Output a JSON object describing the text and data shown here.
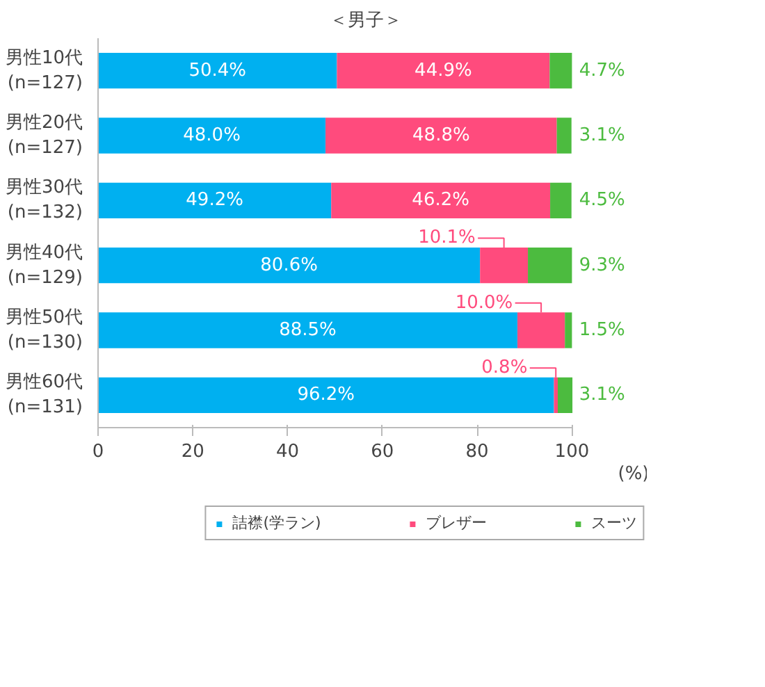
{
  "chart_data": {
    "type": "bar",
    "orientation": "horizontal",
    "stacked": true,
    "title": "＜男子＞",
    "xlabel": "(%)",
    "categories": [
      "男性10代\n(n=127)",
      "男性20代\n(n=127)",
      "男性30代\n(n=132)",
      "男性40代\n(n=129)",
      "男性50代\n(n=130)",
      "男性60代\n(n=131)"
    ],
    "series": [
      {
        "name": "詰襟(学ラン)",
        "color": "#00b0f0",
        "values": [
          50.4,
          48.0,
          49.2,
          80.6,
          88.5,
          96.2
        ],
        "value_labels": [
          "50.4%",
          "48.0%",
          "49.2%",
          "80.6%",
          "88.5%",
          "96.2%"
        ]
      },
      {
        "name": "ブレザー",
        "color": "#ff4b7d",
        "values": [
          44.9,
          48.8,
          46.2,
          10.1,
          10.0,
          0.8
        ],
        "value_labels": [
          "44.9%",
          "48.8%",
          "46.2%",
          "10.1%",
          "10.0%",
          "0.8%"
        ]
      },
      {
        "name": "スーツ",
        "color": "#4cbb3f",
        "values": [
          4.7,
          3.1,
          4.5,
          9.3,
          1.5,
          3.1
        ],
        "value_labels": [
          "4.7%",
          "3.1%",
          "4.5%",
          "9.3%",
          "1.5%",
          "3.1%"
        ]
      }
    ],
    "xlim": [
      0,
      100
    ],
    "xticks": [
      0,
      20,
      40,
      60,
      80,
      100
    ],
    "grid": false,
    "legend": "bottom"
  }
}
